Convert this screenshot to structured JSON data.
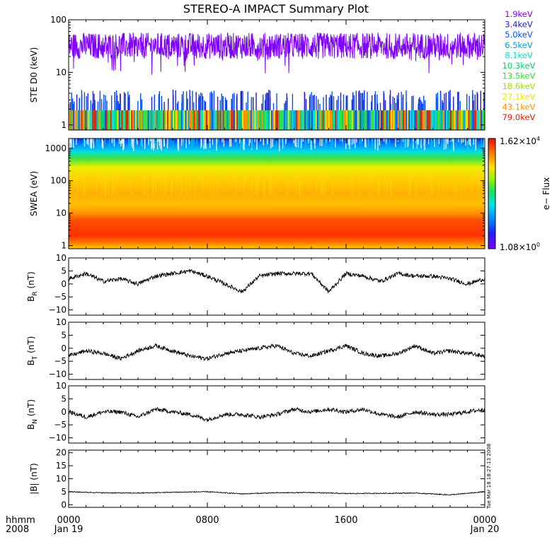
{
  "title": "STEREO-A IMPACT Summary Plot",
  "stamp": "Tue Mar 18 18:27:13 2008",
  "x_axis": {
    "row1_label": "hhmm",
    "row2_label": "2008",
    "ticks": [
      {
        "time": "0000",
        "date": "Jan 19"
      },
      {
        "time": "0800",
        "date": ""
      },
      {
        "time": "1600",
        "date": ""
      },
      {
        "time": "0000",
        "date": "Jan 20"
      }
    ]
  },
  "chart_data": [
    {
      "type": "line",
      "id": "ste",
      "ylabel": "STE D0 (keV)",
      "yscale": "log",
      "ylim": [
        0.8,
        100
      ],
      "yticks": [
        "1",
        "10",
        "100"
      ],
      "ytick_values": [
        1,
        10,
        100
      ],
      "note": "Energy-channel count traces; main channel noisy around 30-40 keV, lower channels near 1-3 keV",
      "legend": [
        {
          "label": "1.9keV",
          "color": "#8000ff"
        },
        {
          "label": "3.4keV",
          "color": "#2020d0"
        },
        {
          "label": "5.0keV",
          "color": "#0050ff"
        },
        {
          "label": "6.5keV",
          "color": "#00a0e0"
        },
        {
          "label": "8.1keV",
          "color": "#00e0d0"
        },
        {
          "label": "10.3keV",
          "color": "#00d070"
        },
        {
          "label": "13.5keV",
          "color": "#30e030"
        },
        {
          "label": "18.6keV",
          "color": "#a0e000"
        },
        {
          "label": "27.1keV",
          "color": "#f0e000"
        },
        {
          "label": "43.1keV",
          "color": "#ff9000"
        },
        {
          "label": "79.0keV",
          "color": "#e02000"
        }
      ]
    },
    {
      "type": "heatmap",
      "id": "swea",
      "ylabel": "SWEA (eV)",
      "yscale": "log",
      "ylim": [
        0.8,
        2000
      ],
      "yticks": [
        "1",
        "10",
        "100",
        "1000"
      ],
      "ytick_values": [
        1,
        10,
        100,
        1000
      ],
      "colorbar": {
        "max": "1.62×10",
        "max_exp": "4",
        "min": "1.08×10",
        "min_exp": "0",
        "label": "e− Flux"
      }
    },
    {
      "type": "line",
      "id": "br",
      "ylabel": "B",
      "ysub": "R",
      "yunit": " (nT)",
      "ylim": [
        -12,
        10
      ],
      "yticks": [
        "10",
        "5",
        "0",
        "−5",
        "−10"
      ],
      "ytick_values": [
        10,
        5,
        0,
        -5,
        -10
      ],
      "x_hours": [
        0,
        1,
        2,
        3,
        4,
        5,
        6,
        7,
        8,
        9,
        10,
        11,
        12,
        13,
        14,
        15,
        16,
        17,
        18,
        19,
        20,
        21,
        22,
        23,
        24
      ],
      "values": [
        2,
        4,
        1,
        2,
        0,
        3,
        4,
        5,
        3,
        0,
        -3,
        3,
        4,
        4,
        4,
        -3,
        4,
        3,
        1,
        4,
        3,
        3,
        2,
        0,
        2
      ]
    },
    {
      "type": "line",
      "id": "bt",
      "ylabel": "B",
      "ysub": "T",
      "yunit": " (nT)",
      "ylim": [
        -12,
        10
      ],
      "yticks": [
        "10",
        "5",
        "0",
        "−5",
        "−10"
      ],
      "ytick_values": [
        10,
        5,
        0,
        -5,
        -10
      ],
      "x_hours": [
        0,
        1,
        2,
        3,
        4,
        5,
        6,
        7,
        8,
        9,
        10,
        11,
        12,
        13,
        14,
        15,
        16,
        17,
        18,
        19,
        20,
        21,
        22,
        23,
        24
      ],
      "values": [
        -3,
        -1,
        -2,
        -4,
        -1,
        1,
        -1,
        -3,
        -4,
        -2,
        -1,
        0,
        1,
        -2,
        -3,
        -1,
        1,
        -2,
        -3,
        -2,
        1,
        -2,
        -1,
        -2,
        -3
      ]
    },
    {
      "type": "line",
      "id": "bn",
      "ylabel": "B",
      "ysub": "N",
      "yunit": " (nT)",
      "ylim": [
        -12,
        10
      ],
      "yticks": [
        "10",
        "5",
        "0",
        "−5",
        "−10"
      ],
      "ytick_values": [
        10,
        5,
        0,
        -5,
        -10
      ],
      "x_hours": [
        0,
        1,
        2,
        3,
        4,
        5,
        6,
        7,
        8,
        9,
        10,
        11,
        12,
        13,
        14,
        15,
        16,
        17,
        18,
        19,
        20,
        21,
        22,
        23,
        24
      ],
      "values": [
        0,
        -2,
        0,
        0,
        -2,
        1,
        0,
        -1,
        -3,
        -1,
        -1,
        -2,
        -1,
        1,
        0,
        1,
        0,
        1,
        -1,
        -2,
        0,
        -1,
        -1,
        0,
        1
      ]
    },
    {
      "type": "line",
      "id": "bmag",
      "ylabel": "|B| (nT)",
      "ylim": [
        -1,
        21
      ],
      "yticks": [
        "20",
        "15",
        "10",
        "5",
        "0"
      ],
      "ytick_values": [
        20,
        15,
        10,
        5,
        0
      ],
      "x_hours": [
        0,
        2,
        4,
        6,
        8,
        10,
        12,
        14,
        16,
        18,
        20,
        22,
        24
      ],
      "values": [
        5,
        4.6,
        4.5,
        4.8,
        5,
        4.2,
        4.6,
        4.7,
        4.3,
        4.4,
        4.5,
        3.8,
        5
      ]
    }
  ]
}
